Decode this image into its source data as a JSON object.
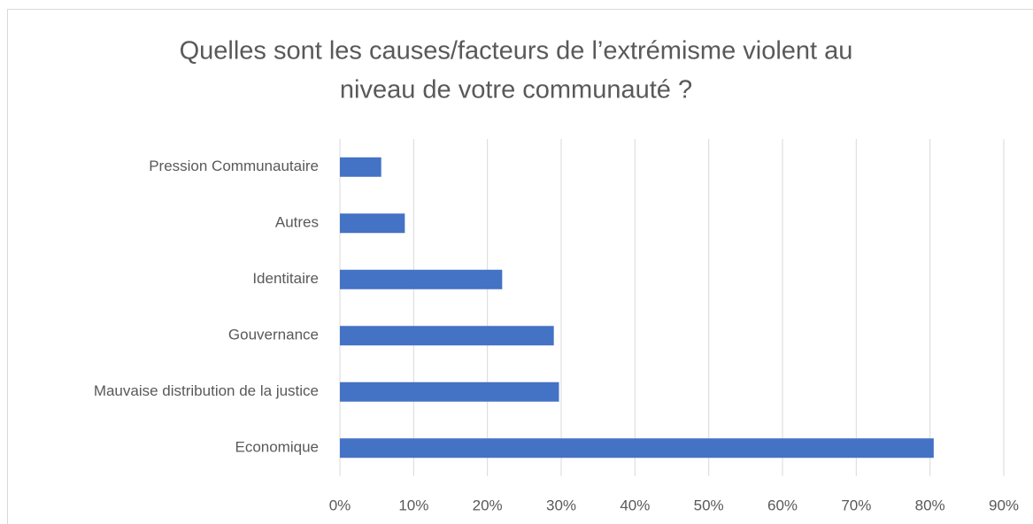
{
  "chart_data": {
    "type": "barh",
    "title": [
      "Quelles sont les causes/facteurs de l’extrémisme violent au",
      "niveau de votre communauté ?"
    ],
    "categories": [
      "Pression Communautaire",
      "Autres",
      "Identitaire",
      "Gouvernance",
      "Mauvaise distribution de la justice",
      "Economique"
    ],
    "values": [
      5.6,
      8.8,
      22,
      29,
      29.7,
      80.5
    ],
    "color": "#4472c4",
    "xlim": [
      0,
      90
    ],
    "xticks": [
      {
        "value": 0,
        "label": "0%"
      },
      {
        "value": 10,
        "label": "10%"
      },
      {
        "value": 20,
        "label": "20%"
      },
      {
        "value": 30,
        "label": "30%"
      },
      {
        "value": 40,
        "label": "40%"
      },
      {
        "value": 50,
        "label": "50%"
      },
      {
        "value": 60,
        "label": "60%"
      },
      {
        "value": 70,
        "label": "70%"
      },
      {
        "value": 80,
        "label": "80%"
      },
      {
        "value": 90,
        "label": "90%"
      }
    ],
    "grid": true
  }
}
